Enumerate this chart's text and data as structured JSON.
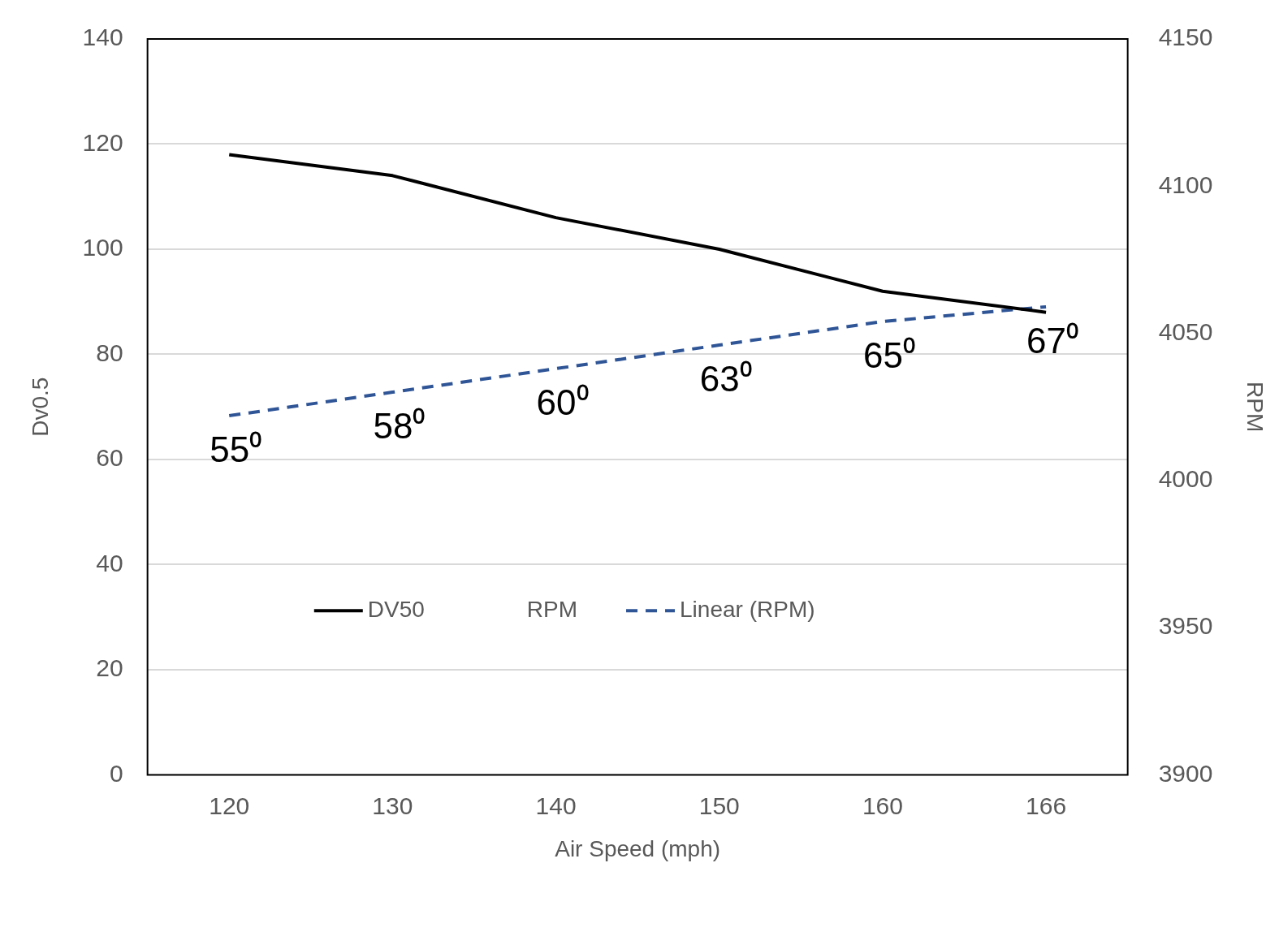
{
  "chart_data": {
    "type": "line",
    "categories": [
      "120",
      "130",
      "140",
      "150",
      "160",
      "166"
    ],
    "xlabel": "Air Speed (mph)",
    "ylabel": "Dv0.5",
    "y2label": "RPM",
    "series": [
      {
        "name": "DV50",
        "color": "#000000",
        "values": [
          118,
          114,
          106,
          100,
          92,
          88
        ]
      },
      {
        "name": "RPM",
        "axis": "y2",
        "values": [
          null,
          null,
          null,
          null,
          null,
          null
        ]
      },
      {
        "name": "Linear (RPM)",
        "color": "#2f5597",
        "axis": "y2",
        "line_style": "dashed",
        "values": [
          4022,
          4030,
          4038,
          4046,
          4054,
          4059
        ]
      }
    ],
    "ylim": [
      0,
      140
    ],
    "yticks": [
      0,
      20,
      40,
      60,
      80,
      100,
      120,
      140
    ],
    "y2lim": [
      3900,
      4150
    ],
    "y2ticks": [
      3900,
      3950,
      4000,
      4050,
      4100,
      4150
    ],
    "grid": "y",
    "legend": "bottom",
    "marker": "none",
    "annotations": [
      "55⁰",
      "58⁰",
      "60⁰",
      "63⁰",
      "65⁰",
      "67⁰"
    ]
  }
}
